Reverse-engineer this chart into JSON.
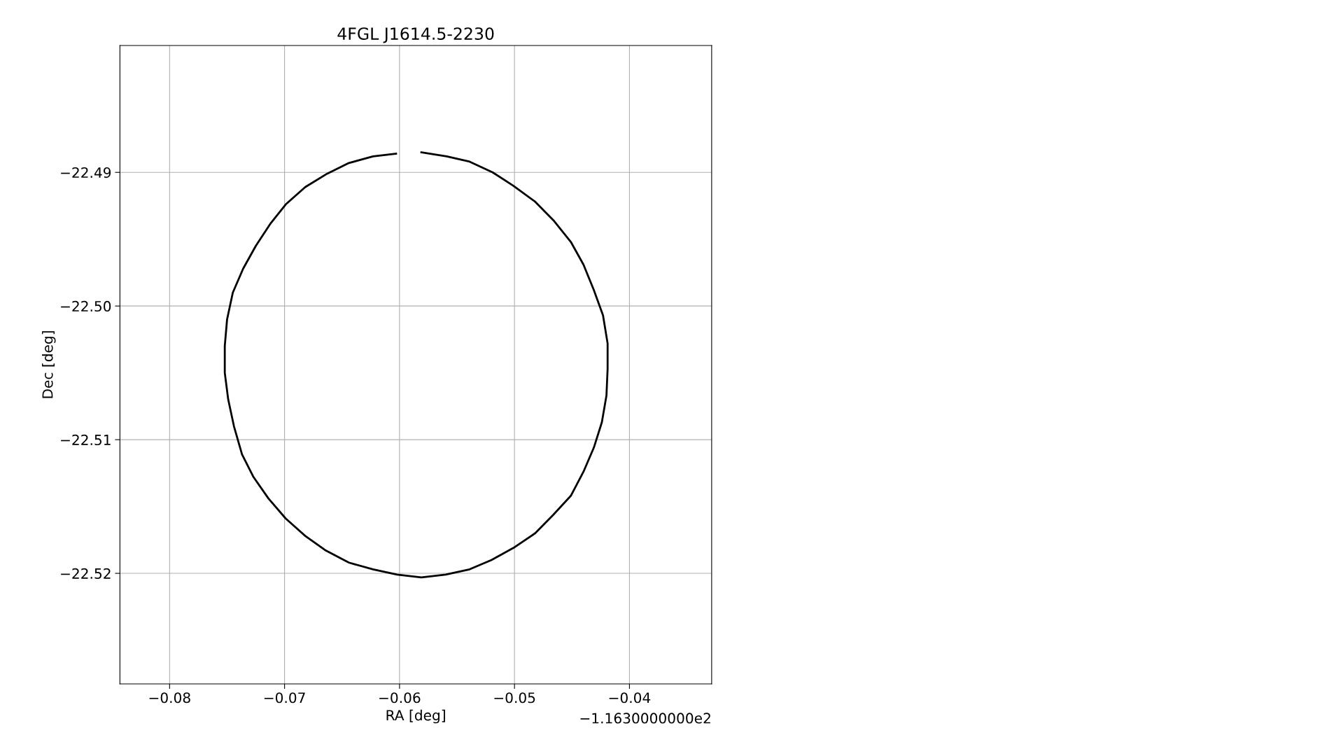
{
  "chart_data": {
    "type": "line",
    "title": "4FGL J1614.5-2230",
    "xlabel": "RA [deg]",
    "ylabel": "Dec [deg]",
    "annotations": [
      "−1.1630000000e2"
    ],
    "xlim": [
      -0.08432,
      -0.03285
    ],
    "ylim": [
      -22.52827,
      -22.48051
    ],
    "xticks": [
      -0.08,
      -0.07,
      -0.06,
      -0.05,
      -0.04
    ],
    "yticks": [
      {
        "value": -22.49,
        "label": "−22.49"
      },
      {
        "value": -22.5,
        "label": "−22.50"
      },
      {
        "value": -22.51,
        "label": "−22.51"
      },
      {
        "value": -22.52,
        "label": "−22.52"
      }
    ],
    "grid": true,
    "marker": "none",
    "line_style": "solid",
    "series": [
      {
        "color": "#000000",
        "x": [
          -0.0581,
          -0.0559,
          -0.0539,
          -0.0519,
          -0.0501,
          -0.0482,
          -0.0466,
          -0.0451,
          -0.044,
          -0.0431,
          -0.0423,
          -0.0419,
          -0.0419,
          -0.042,
          -0.0424,
          -0.0431,
          -0.044,
          -0.0451,
          -0.0466,
          -0.0482,
          -0.0501,
          -0.052,
          -0.0539,
          -0.056,
          -0.0581,
          -0.0602,
          -0.0623,
          -0.0644,
          -0.0664,
          -0.0682,
          -0.0699,
          -0.0714,
          -0.0727,
          -0.0737,
          -0.0744,
          -0.0749,
          -0.0752,
          -0.0752,
          -0.075,
          -0.0745,
          -0.0736,
          -0.0725,
          -0.0712,
          -0.0699,
          -0.0682,
          -0.0663,
          -0.0644,
          -0.0623,
          -0.0603
        ],
        "values": [
          -22.4885,
          -22.4888,
          -22.4892,
          -22.49,
          -22.491,
          -22.4922,
          -22.4936,
          -22.4952,
          -22.4969,
          -22.4988,
          -22.5007,
          -22.5028,
          -22.5047,
          -22.5067,
          -22.5087,
          -22.5106,
          -22.5124,
          -22.5142,
          -22.5156,
          -22.517,
          -22.5181,
          -22.519,
          -22.5197,
          -22.5201,
          -22.5203,
          -22.5201,
          -22.5197,
          -22.5192,
          -22.5183,
          -22.5172,
          -22.5159,
          -22.5144,
          -22.5128,
          -22.5111,
          -22.509,
          -22.507,
          -22.505,
          -22.503,
          -22.501,
          -22.499,
          -22.4972,
          -22.4955,
          -22.4938,
          -22.4924,
          -22.4911,
          -22.4901,
          -22.4893,
          -22.4888,
          -22.4886
        ]
      }
    ]
  }
}
